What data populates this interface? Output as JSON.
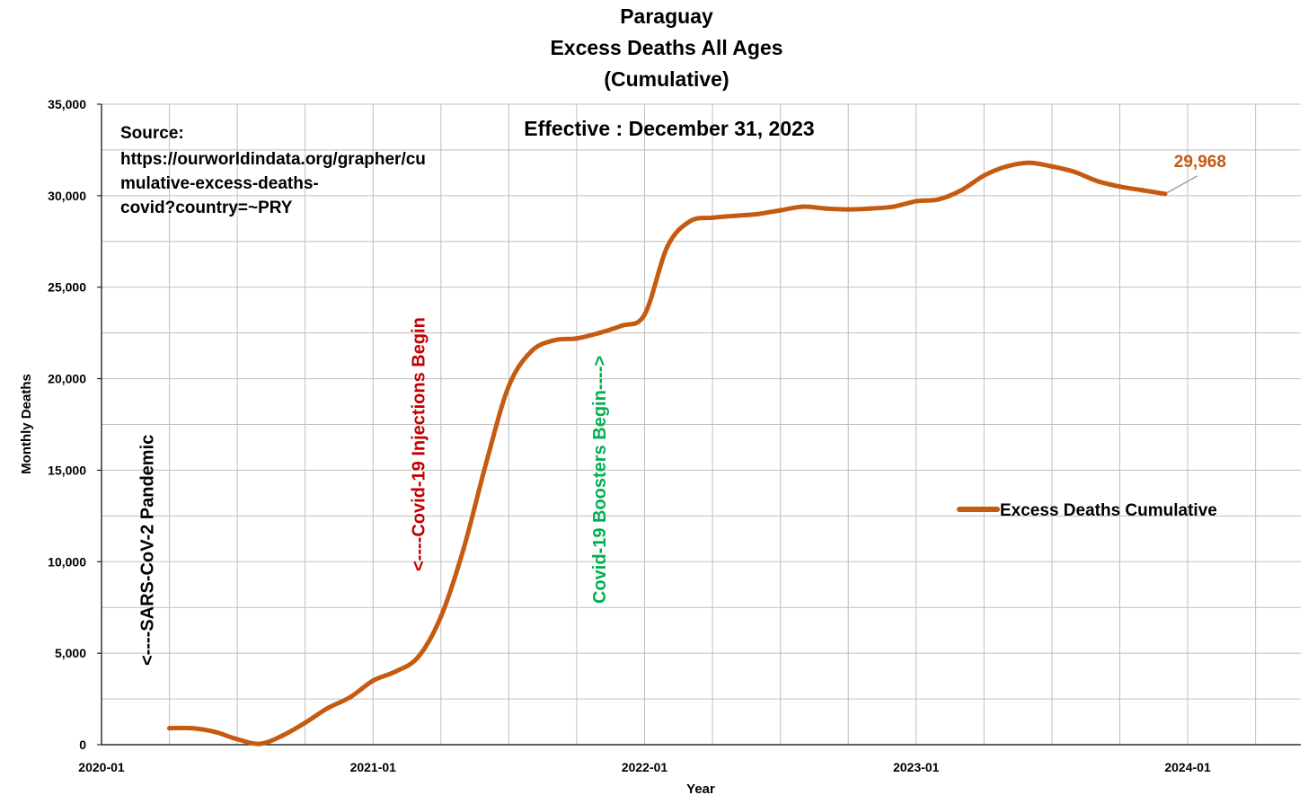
{
  "colors": {
    "series": "#C55A11",
    "grid": "#BFBFBF",
    "axis": "#000000",
    "annotation_pandemic": "#000000",
    "annotation_injections": "#C00000",
    "annotation_boosters": "#00B050",
    "final_label": "#C55A11"
  },
  "chart_data": {
    "type": "line",
    "title": [
      "Paraguay",
      "Excess Deaths All Ages",
      "(Cumulative)"
    ],
    "subtitle": "Effective : December 31, 2023",
    "source_lines": [
      "Source:",
      "https://ourworldindata.org/grapher/cu",
      "mulative-excess-deaths-",
      "covid?country=~PRY"
    ],
    "xlabel": "Year",
    "ylabel": "Monthly Deaths",
    "xlim": [
      "2020-01",
      "2024-06"
    ],
    "ylim": [
      0,
      35000
    ],
    "x_tick_labels": [
      "2020-01",
      "2021-01",
      "2022-01",
      "2023-01",
      "2024-01"
    ],
    "y_tick_labels": [
      "0",
      "5,000",
      "10,000",
      "15,000",
      "20,000",
      "25,000",
      "30,000",
      "35,000"
    ],
    "grid": true,
    "legend_position": "right",
    "series": [
      {
        "name": "Excess Deaths Cumulative",
        "x": [
          "2020-04",
          "2020-05",
          "2020-06",
          "2020-07",
          "2020-08",
          "2020-09",
          "2020-10",
          "2020-11",
          "2020-12",
          "2021-01",
          "2021-02",
          "2021-03",
          "2021-04",
          "2021-05",
          "2021-06",
          "2021-07",
          "2021-08",
          "2021-09",
          "2021-10",
          "2021-11",
          "2021-12",
          "2022-01",
          "2022-02",
          "2022-03",
          "2022-04",
          "2022-05",
          "2022-06",
          "2022-07",
          "2022-08",
          "2022-09",
          "2022-10",
          "2022-11",
          "2022-12",
          "2023-01",
          "2023-02",
          "2023-03",
          "2023-04",
          "2023-05",
          "2023-06",
          "2023-07",
          "2023-08",
          "2023-09",
          "2023-10",
          "2023-11",
          "2023-12"
        ],
        "y": [
          900,
          900,
          700,
          300,
          50,
          500,
          1200,
          2000,
          2600,
          3500,
          4000,
          4800,
          7000,
          10700,
          15400,
          19600,
          21500,
          22100,
          22200,
          22500,
          22900,
          23500,
          27200,
          28600,
          28800,
          28900,
          29000,
          29200,
          29400,
          29300,
          29250,
          29300,
          29400,
          29700,
          29800,
          30300,
          31100,
          31600,
          31800,
          31600,
          31300,
          30800,
          30500,
          30300,
          30100
        ]
      }
    ],
    "annotations": [
      {
        "text": "<----SARS-CoV-2 Pandemic",
        "x": "2020-03",
        "color_key": "annotation_pandemic"
      },
      {
        "text": "<----Covid-19 Injections Begin",
        "x": "2021-03",
        "color_key": "annotation_injections"
      },
      {
        "text": "Covid-19 Boosters Begin---->",
        "x": "2021-11",
        "color_key": "annotation_boosters"
      }
    ],
    "final_value_label": "29,968"
  }
}
